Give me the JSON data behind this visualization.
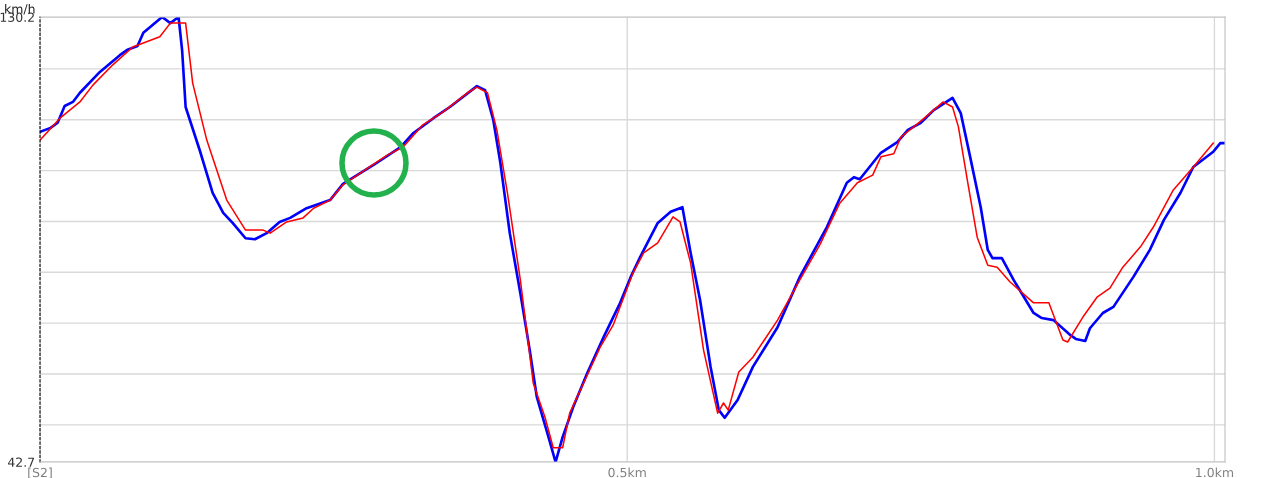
{
  "chart_data": {
    "type": "line",
    "ylabel": "km/h",
    "xlim": [
      0,
      1.009
    ],
    "ylim": [
      42.7,
      130.2
    ],
    "xticks": [
      {
        "value": 0,
        "label": "[S2]"
      },
      {
        "value": 0.5,
        "label": "0.5km"
      },
      {
        "value": 1.0,
        "label": "1.0km"
      }
    ],
    "yticks": [
      {
        "value": 42.7,
        "label": "42.7"
      },
      {
        "value": 50,
        "label": null
      },
      {
        "value": 60,
        "label": null
      },
      {
        "value": 70,
        "label": null
      },
      {
        "value": 80,
        "label": null
      },
      {
        "value": 90,
        "label": null
      },
      {
        "value": 100,
        "label": null
      },
      {
        "value": 110,
        "label": null
      },
      {
        "value": 120,
        "label": null
      },
      {
        "value": 130.2,
        "label": "130.2"
      }
    ],
    "grid": true,
    "marker": "none",
    "line_style": "solid",
    "series": [
      {
        "color": "#0000ff",
        "x": [
          0,
          0.009,
          0.015,
          0.021,
          0.028,
          0.034,
          0.051,
          0.068,
          0.074,
          0.083,
          0.088,
          0.104,
          0.111,
          0.118,
          0.121,
          0.124,
          0.136,
          0.147,
          0.156,
          0.164,
          0.175,
          0.183,
          0.193,
          0.204,
          0.213,
          0.227,
          0.247,
          0.258,
          0.284,
          0.307,
          0.318,
          0.335,
          0.349,
          0.372,
          0.379,
          0.386,
          0.392,
          0.4,
          0.409,
          0.417,
          0.423,
          0.432,
          0.439,
          0.445,
          0.454,
          0.466,
          0.48,
          0.494,
          0.503,
          0.511,
          0.526,
          0.537,
          0.547,
          0.554,
          0.562,
          0.571,
          0.578,
          0.583,
          0.594,
          0.607,
          0.628,
          0.647,
          0.67,
          0.687,
          0.693,
          0.698,
          0.716,
          0.73,
          0.739,
          0.75,
          0.761,
          0.777,
          0.784,
          0.792,
          0.801,
          0.807,
          0.811,
          0.819,
          0.829,
          0.846,
          0.853,
          0.863,
          0.877,
          0.882,
          0.89,
          0.894,
          0.905,
          0.914,
          0.931,
          0.945,
          0.957,
          0.971,
          0.982,
          0.999,
          1.005,
          1.009
        ],
        "values": [
          107.6,
          108.4,
          109.4,
          112.7,
          113.5,
          115.3,
          119.4,
          122.7,
          123.7,
          124.5,
          127.1,
          130.2,
          129.0,
          130.2,
          123.7,
          112.5,
          104.0,
          95.6,
          91.7,
          89.7,
          86.7,
          86.5,
          87.7,
          89.9,
          90.7,
          92.6,
          94.2,
          97.4,
          101.1,
          104.6,
          107.4,
          110.3,
          112.5,
          116.6,
          115.8,
          109.9,
          101.5,
          87.7,
          75.9,
          64.7,
          55.5,
          48.4,
          42.7,
          47.6,
          53.5,
          60.2,
          67.3,
          74.0,
          79.1,
          83.0,
          89.7,
          91.9,
          92.8,
          83.8,
          74.6,
          61.4,
          52.9,
          51.4,
          54.9,
          61.4,
          69.2,
          79.1,
          88.9,
          97.6,
          98.7,
          98.3,
          103.5,
          105.6,
          108.0,
          109.4,
          111.9,
          114.3,
          111.3,
          102.7,
          92.8,
          84.4,
          82.8,
          82.8,
          78.5,
          72.0,
          71.0,
          70.6,
          67.7,
          66.9,
          66.5,
          69.0,
          72.0,
          73.2,
          79.1,
          84.4,
          90.3,
          95.6,
          100.7,
          103.7,
          105.4,
          105.4
        ]
      },
      {
        "color": "#ff0000",
        "x": [
          0,
          0.017,
          0.034,
          0.045,
          0.062,
          0.079,
          0.102,
          0.111,
          0.124,
          0.13,
          0.142,
          0.159,
          0.175,
          0.19,
          0.196,
          0.21,
          0.224,
          0.233,
          0.247,
          0.258,
          0.279,
          0.296,
          0.309,
          0.326,
          0.343,
          0.364,
          0.372,
          0.381,
          0.389,
          0.398,
          0.409,
          0.42,
          0.43,
          0.437,
          0.445,
          0.451,
          0.462,
          0.477,
          0.488,
          0.505,
          0.514,
          0.526,
          0.539,
          0.545,
          0.554,
          0.565,
          0.577,
          0.582,
          0.586,
          0.595,
          0.607,
          0.628,
          0.647,
          0.664,
          0.681,
          0.696,
          0.709,
          0.716,
          0.727,
          0.733,
          0.744,
          0.756,
          0.769,
          0.777,
          0.782,
          0.79,
          0.798,
          0.807,
          0.815,
          0.826,
          0.846,
          0.859,
          0.871,
          0.875,
          0.888,
          0.9,
          0.911,
          0.922,
          0.937,
          0.948,
          0.965,
          0.982,
          0.999
        ],
        "values": [
          106.0,
          110.3,
          113.5,
          116.8,
          120.8,
          124.3,
          126.3,
          129.0,
          129.0,
          117.2,
          106.0,
          94.2,
          88.3,
          88.3,
          87.7,
          89.9,
          90.7,
          92.6,
          94.2,
          97.2,
          100.5,
          103.1,
          104.6,
          109.0,
          111.5,
          115.3,
          116.4,
          115.3,
          108.0,
          95.6,
          78.5,
          58.2,
          51.5,
          45.5,
          45.5,
          52.3,
          57.8,
          65.3,
          69.6,
          79.9,
          83.8,
          85.8,
          90.9,
          89.9,
          81.8,
          64.7,
          52.3,
          54.3,
          52.9,
          60.4,
          63.3,
          70.6,
          78.5,
          85.4,
          93.6,
          97.6,
          99.1,
          102.7,
          103.3,
          106.6,
          108.6,
          110.9,
          113.5,
          112.5,
          108.6,
          97.6,
          86.9,
          81.4,
          81.0,
          78.1,
          74.0,
          74.0,
          66.7,
          66.3,
          71.2,
          75.1,
          76.9,
          81.0,
          85.0,
          88.9,
          96.2,
          100.7,
          105.4
        ]
      }
    ]
  }
}
